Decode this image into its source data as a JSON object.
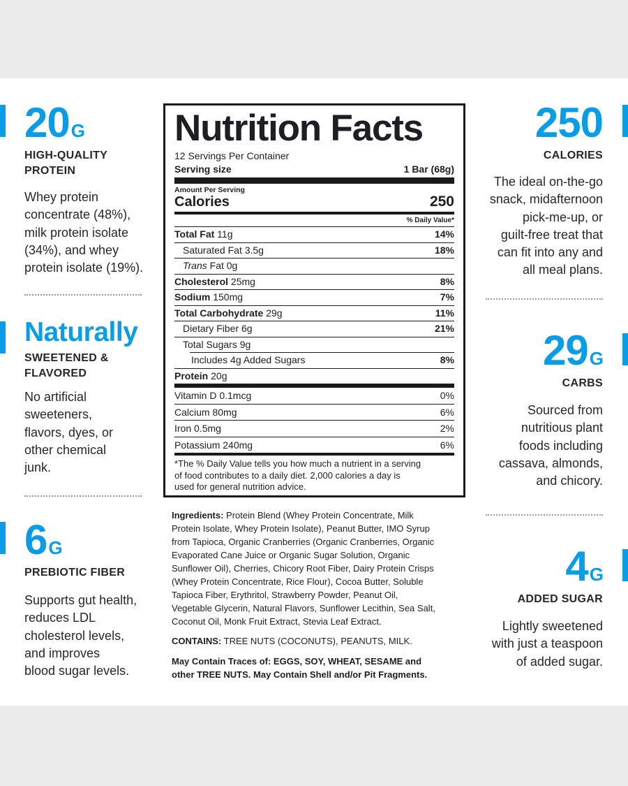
{
  "left": [
    {
      "big": "20",
      "unit": "G",
      "sub": [
        "HIGH-QUALITY",
        "PROTEIN"
      ],
      "desc": [
        "Whey protein",
        "concentrate (48%),",
        "milk protein isolate",
        "(34%), and whey",
        "protein isolate (19%)."
      ]
    },
    {
      "big": "Naturally",
      "unit": "",
      "sub": [
        "SWEETENED &",
        "FLAVORED"
      ],
      "desc": [
        "No artificial",
        "sweeteners,",
        "flavors, dyes, or",
        "other chemical",
        "junk."
      ]
    },
    {
      "big": "6",
      "unit": "G",
      "sub": [
        "PREBIOTIC FIBER"
      ],
      "desc": [
        "Supports gut health,",
        "reduces LDL",
        "cholesterol levels,",
        "and improves",
        "blood sugar levels."
      ]
    }
  ],
  "right": [
    {
      "big": "250",
      "unit": "",
      "sub": [
        "CALORIES"
      ],
      "desc": [
        "The ideal on-the-go",
        "snack, midafternoon",
        "pick-me-up, or",
        "guilt-free treat that",
        "can fit into any and",
        "all meal plans."
      ]
    },
    {
      "big": "29",
      "unit": "G",
      "sub": [
        "CARBS"
      ],
      "desc": [
        "Sourced from",
        "nutritious plant",
        "foods including",
        "cassava, almonds,",
        "and chicory."
      ]
    },
    {
      "big": "4",
      "unit": "G",
      "sub": [
        "ADDED SUGAR"
      ],
      "desc": [
        "Lightly sweetened",
        "with just a teaspoon",
        "of added sugar."
      ]
    }
  ],
  "label": {
    "title": "Nutrition Facts",
    "servings": "12 Servings Per Container",
    "serving_size_label": "Serving size",
    "serving_size_value": "1 Bar (68g)",
    "amount_per_serving": "Amount Per Serving",
    "calories_label": "Calories",
    "calories_value": "250",
    "dv_header": "% Daily Value*",
    "nutrients": [
      {
        "bold": "Total Fat",
        "rest": " 11g",
        "pct": "14%",
        "indent": 0
      },
      {
        "bold": "",
        "rest": "Saturated Fat 3.5g",
        "pct": "18%",
        "indent": 1
      },
      {
        "bold": "",
        "italic": "Trans",
        "rest": " Fat 0g",
        "pct": "",
        "indent": 1
      },
      {
        "bold": "Cholesterol",
        "rest": " 25mg",
        "pct": "8%",
        "indent": 0
      },
      {
        "bold": "Sodium",
        "rest": " 150mg",
        "pct": "7%",
        "indent": 0
      },
      {
        "bold": "Total Carbohydrate",
        "rest": " 29g",
        "pct": "11%",
        "indent": 0
      },
      {
        "bold": "",
        "rest": "Dietary Fiber 6g",
        "pct": "21%",
        "indent": 1
      },
      {
        "bold": "",
        "rest": "Total Sugars 9g",
        "pct": "",
        "indent": 1
      },
      {
        "bold": "",
        "rest": "Includes 4g Added Sugars",
        "pct": "8%",
        "indent": 2
      },
      {
        "bold": "Protein",
        "rest": " 20g",
        "pct": "",
        "indent": 0
      }
    ],
    "vitamins": [
      {
        "name": "Vitamin D 0.1mcg",
        "pct": "0%"
      },
      {
        "name": "Calcium 80mg",
        "pct": "6%"
      },
      {
        "name": "Iron 0.5mg",
        "pct": "2%"
      },
      {
        "name": "Potassium 240mg",
        "pct": "6%"
      }
    ],
    "footnote": [
      "*The % Daily Value tells you how much a nutrient in a serving",
      "of food contributes to a daily diet. 2,000 calories a day is",
      "used for general nutrition advice."
    ]
  },
  "ingredients": {
    "label": "Ingredients:",
    "lines": [
      " Protein Blend (Whey Protein Concentrate, Milk",
      "Protein Isolate, Whey Protein Isolate), Peanut Butter, IMO Syrup",
      "from Tapioca, Organic Cranberries (Organic Cranberries, Organic",
      "Evaporated Cane Juice or Organic Sugar Solution, Organic",
      "Sunflower Oil), Cherries, Chicory Root Fiber, Dairy Protein Crisps",
      "(Whey Protein Concentrate, Rice Flour), Cocoa Butter, Soluble",
      "Tapioca Fiber, Erythritol, Strawberry Powder, Peanut Oil,",
      "Vegetable Glycerin, Natural Flavors, Sunflower Lecithin, Sea Salt,",
      "Coconut Oil, Monk Fruit Extract, Stevia Leaf Extract."
    ],
    "contains_label": "CONTAINS:",
    "contains_text": " TREE NUTS (COCONUTS), PEANUTS, MILK.",
    "traces": [
      "May Contain Traces of: EGGS, SOY, WHEAT, SESAME and",
      "other TREE NUTS. May Contain Shell and/or Pit Fragments."
    ]
  },
  "colors": {
    "accent": "#0a9de6",
    "text": "#1e1e24",
    "background": "#ececec",
    "panel": "#ffffff"
  }
}
